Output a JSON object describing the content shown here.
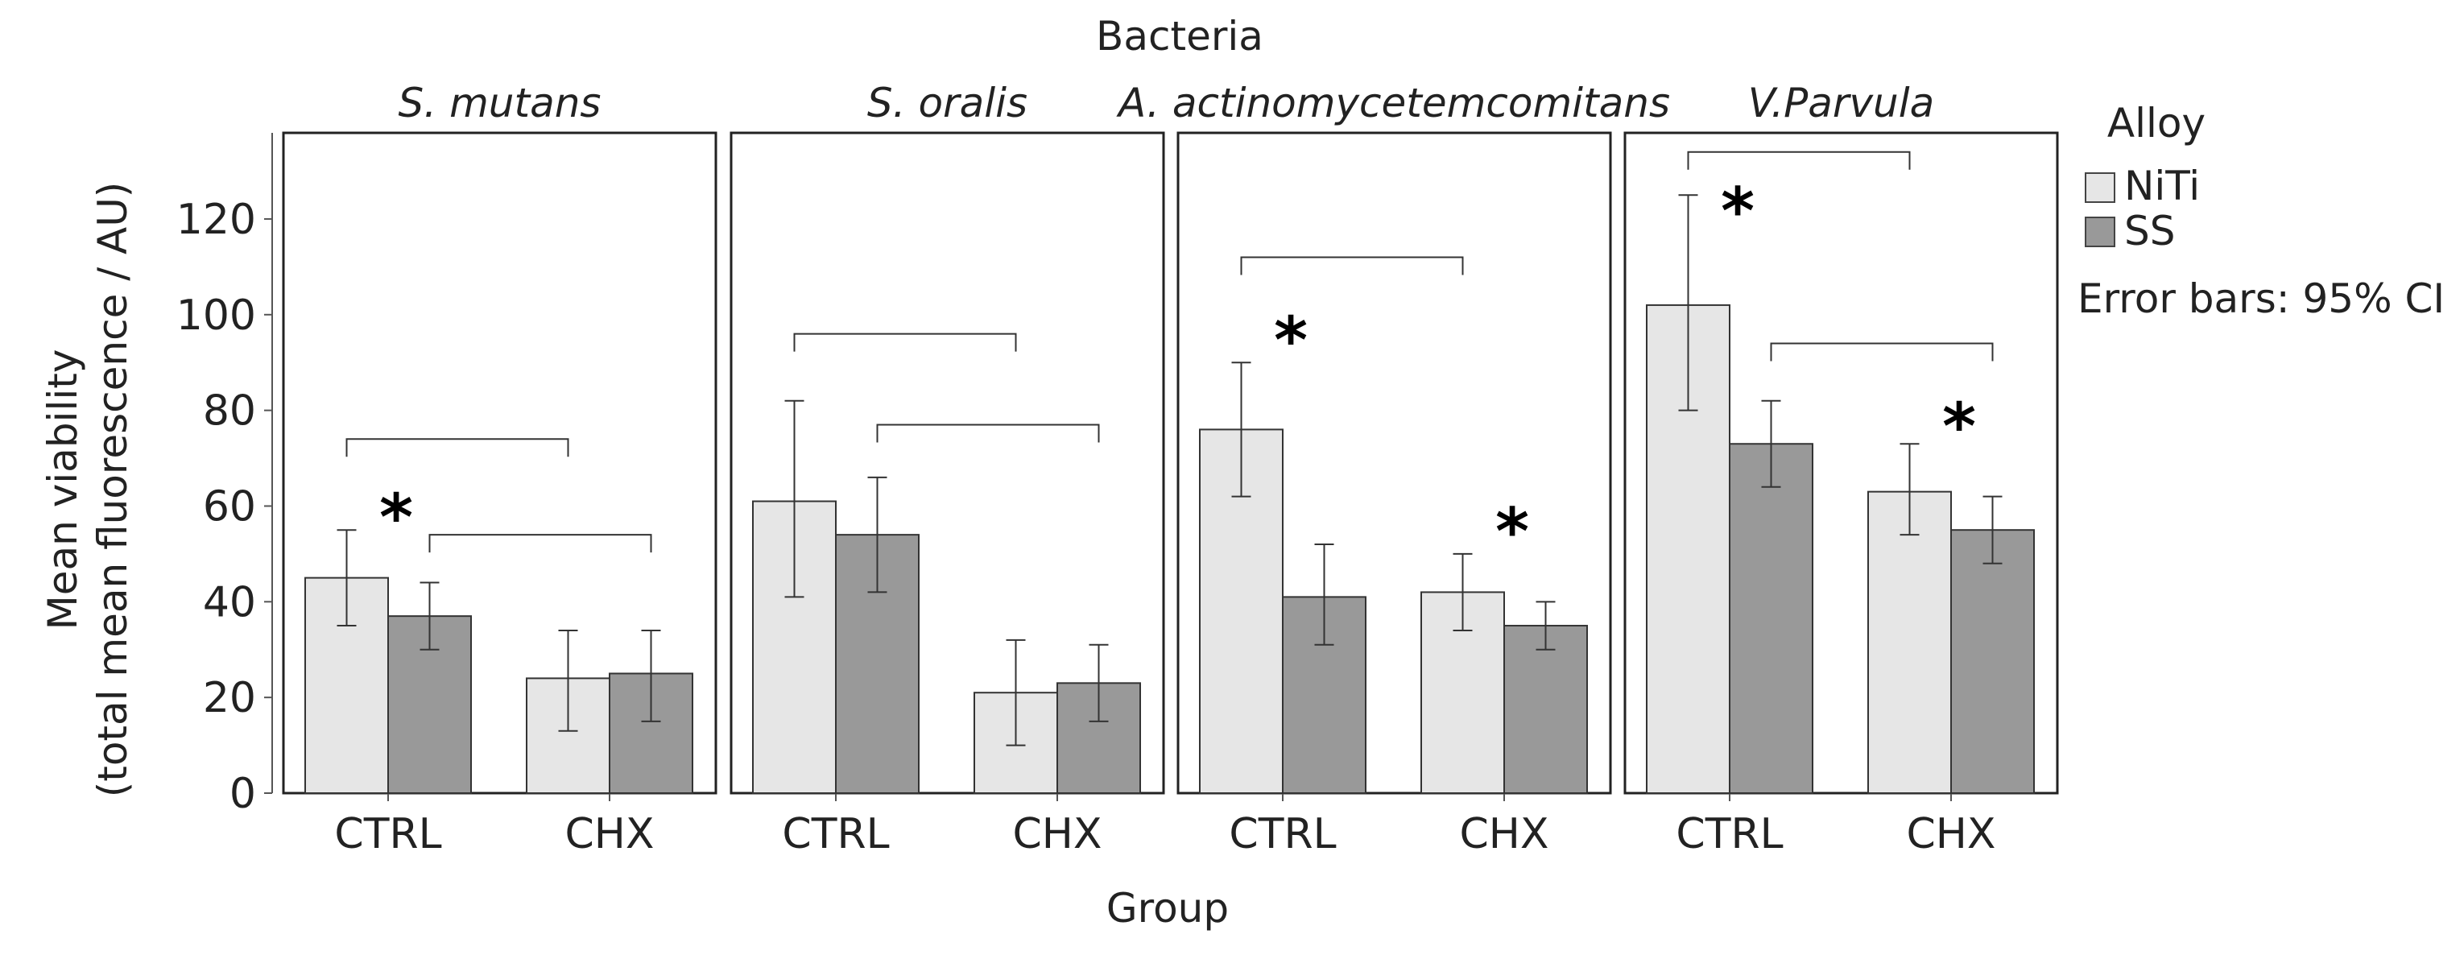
{
  "chart_data": {
    "type": "bar",
    "title": "Bacteria",
    "xlabel": "Group",
    "ylabel_line1": "Mean viability",
    "ylabel_line2": "(total mean fluorescence / AU)",
    "ylim": [
      0,
      138
    ],
    "yticks": [
      0,
      20,
      40,
      60,
      80,
      100,
      120
    ],
    "categories": [
      "CTRL",
      "CHX"
    ],
    "legend": {
      "title": "Alloy",
      "entries": [
        {
          "name": "NiTi",
          "color": "#e6e6e6"
        },
        {
          "name": "SS",
          "color": "#999999"
        }
      ],
      "note": "Error bars: 95% CI"
    },
    "panels": [
      {
        "name": "S. mutans",
        "series": [
          {
            "name": "NiTi",
            "values": [
              45,
              24
            ],
            "ci_low": [
              35,
              13
            ],
            "ci_high": [
              55,
              34
            ]
          },
          {
            "name": "SS",
            "values": [
              37,
              25
            ],
            "ci_low": [
              30,
              15
            ],
            "ci_high": [
              44,
              34
            ]
          }
        ],
        "brackets": [
          {
            "from": [
              0,
              0
            ],
            "to": [
              1,
              0
            ],
            "y": 74
          },
          {
            "from": [
              0,
              1
            ],
            "to": [
              1,
              1
            ],
            "y": 54
          }
        ],
        "stars": [
          {
            "category": 0,
            "y": 58
          }
        ]
      },
      {
        "name": "S. oralis",
        "series": [
          {
            "name": "NiTi",
            "values": [
              61,
              21
            ],
            "ci_low": [
              41,
              10
            ],
            "ci_high": [
              82,
              32
            ]
          },
          {
            "name": "SS",
            "values": [
              54,
              23
            ],
            "ci_low": [
              42,
              15
            ],
            "ci_high": [
              66,
              31
            ]
          }
        ],
        "brackets": [
          {
            "from": [
              0,
              0
            ],
            "to": [
              1,
              0
            ],
            "y": 96
          },
          {
            "from": [
              0,
              1
            ],
            "to": [
              1,
              1
            ],
            "y": 77
          }
        ],
        "stars": []
      },
      {
        "name": "A. actinomycetemcomitans",
        "series": [
          {
            "name": "NiTi",
            "values": [
              76,
              42
            ],
            "ci_low": [
              62,
              34
            ],
            "ci_high": [
              90,
              50
            ]
          },
          {
            "name": "SS",
            "values": [
              41,
              35
            ],
            "ci_low": [
              31,
              30
            ],
            "ci_high": [
              52,
              40
            ]
          }
        ],
        "brackets": [
          {
            "from": [
              0,
              0
            ],
            "to": [
              1,
              0
            ],
            "y": 112
          }
        ],
        "stars": [
          {
            "category": 0,
            "y": 95
          },
          {
            "category": 1,
            "y": 55
          }
        ]
      },
      {
        "name": "V.Parvula",
        "series": [
          {
            "name": "NiTi",
            "values": [
              102,
              63
            ],
            "ci_low": [
              80,
              54
            ],
            "ci_high": [
              125,
              73
            ]
          },
          {
            "name": "SS",
            "values": [
              73,
              55
            ],
            "ci_low": [
              64,
              48
            ],
            "ci_high": [
              82,
              62
            ]
          }
        ],
        "brackets": [
          {
            "from": [
              0,
              0
            ],
            "to": [
              1,
              0
            ],
            "y": 134
          },
          {
            "from": [
              0,
              1
            ],
            "to": [
              1,
              1
            ],
            "y": 94
          }
        ],
        "stars": [
          {
            "category": 0,
            "y": 122
          },
          {
            "category": 1,
            "y": 77
          }
        ]
      }
    ]
  }
}
